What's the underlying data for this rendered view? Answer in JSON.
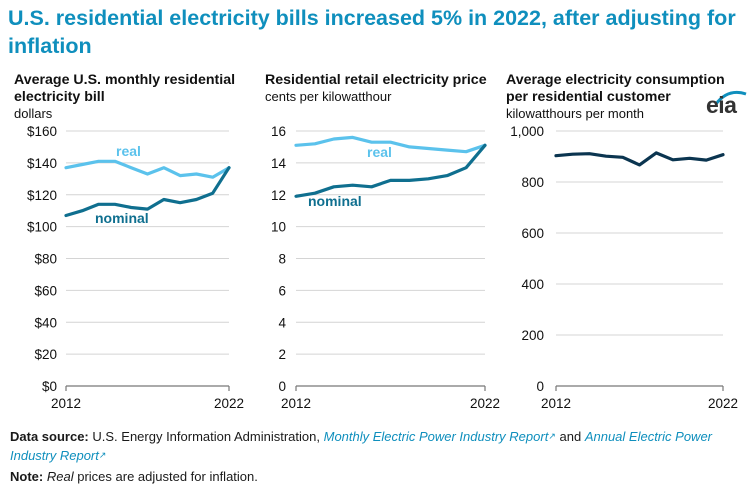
{
  "title": "U.S. residential electricity bills increased 5% in 2022, after adjusting for inflation",
  "colors": {
    "real": "#5bc2ec",
    "nominal": "#0f6f8f",
    "consumption": "#0b3550",
    "brand": "#0f8fbd"
  },
  "logo": "eia",
  "footer": {
    "source_label": "Data source:",
    "source_text": "U.S. Energy Information Administration,",
    "link1": "Monthly Electric Power Industry Report",
    "and_text": "and",
    "link2a": "Annual Electric",
    "link2b": "Power Industry Report",
    "note_label": "Note:",
    "note_italic": "Real",
    "note_text": "prices are adjusted for inflation."
  },
  "chart_data": [
    {
      "type": "line",
      "title": "Average U.S. monthly residential electricity bill",
      "unit": "dollars",
      "x": [
        2012,
        2013,
        2014,
        2015,
        2016,
        2017,
        2018,
        2019,
        2020,
        2021,
        2022
      ],
      "xticks": [
        "2012",
        "2022"
      ],
      "yticks": [
        "$160",
        "$140",
        "$120",
        "$100",
        "$80",
        "$60",
        "$40",
        "$20",
        "$0"
      ],
      "ylim": [
        0,
        160
      ],
      "series": [
        {
          "name": "real",
          "values": [
            137,
            139,
            141,
            141,
            137,
            133,
            137,
            132,
            133,
            131,
            137
          ]
        },
        {
          "name": "nominal",
          "values": [
            107,
            110,
            114,
            114,
            112,
            111,
            117,
            115,
            117,
            121,
            137
          ]
        }
      ]
    },
    {
      "type": "line",
      "title": "Residential retail electricity price",
      "unit": "cents per kilowatthour",
      "x": [
        2012,
        2013,
        2014,
        2015,
        2016,
        2017,
        2018,
        2019,
        2020,
        2021,
        2022
      ],
      "xticks": [
        "2012",
        "2022"
      ],
      "yticks": [
        "16",
        "14",
        "12",
        "10",
        "8",
        "6",
        "4",
        "2",
        "0"
      ],
      "ylim": [
        0,
        16
      ],
      "series": [
        {
          "name": "real",
          "values": [
            15.1,
            15.2,
            15.5,
            15.6,
            15.3,
            15.3,
            15.0,
            14.9,
            14.8,
            14.7,
            15.1
          ]
        },
        {
          "name": "nominal",
          "values": [
            11.9,
            12.1,
            12.5,
            12.6,
            12.5,
            12.9,
            12.9,
            13.0,
            13.2,
            13.7,
            15.1
          ]
        }
      ]
    },
    {
      "type": "line",
      "title": "Average electricity consumption per residential customer",
      "unit": "kilowatthours per month",
      "x": [
        2012,
        2013,
        2014,
        2015,
        2016,
        2017,
        2018,
        2019,
        2020,
        2021,
        2022
      ],
      "xticks": [
        "2012",
        "2022"
      ],
      "yticks": [
        "1,000",
        "800",
        "600",
        "400",
        "200",
        "0"
      ],
      "ylim": [
        0,
        1000
      ],
      "series": [
        {
          "name": "consumption",
          "values": [
            903,
            909,
            911,
            901,
            897,
            867,
            914,
            887,
            893,
            886,
            907
          ]
        }
      ]
    }
  ]
}
